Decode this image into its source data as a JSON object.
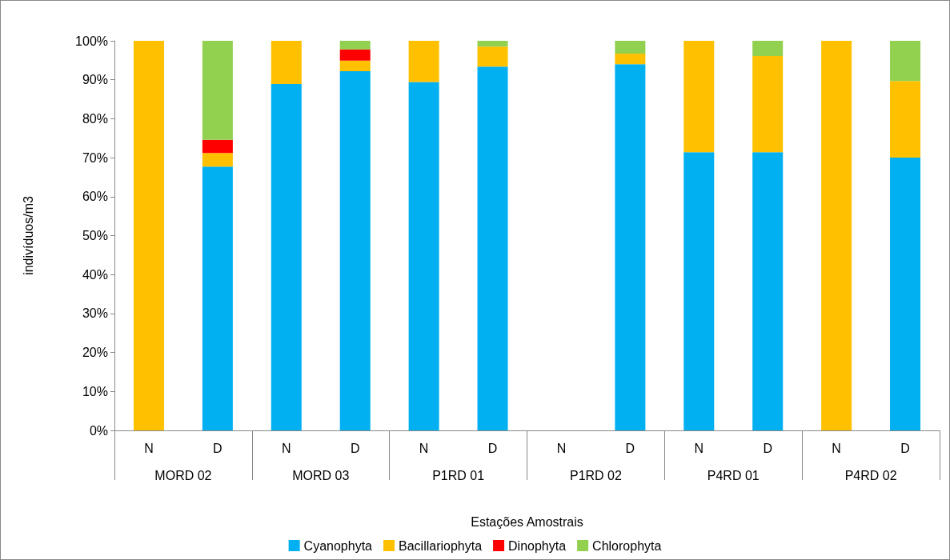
{
  "chart_data": {
    "type": "bar",
    "stacked": true,
    "xlabel": "Estações Amostrais",
    "ylabel": "indivíduos/m3",
    "categories": [
      "N",
      "D",
      "N",
      "D",
      "N",
      "D",
      "N",
      "D",
      "N",
      "D",
      "N",
      "D"
    ],
    "annotations": [
      "MORD 02",
      "MORD 03",
      "P1RD 01",
      "P1RD 02",
      "P4RD 01",
      "P4RD 02"
    ],
    "series": [
      {
        "name": "Cyanophyta",
        "color": "#00b0f0",
        "values": [
          0,
          67.7,
          88.9,
          92.2,
          89.4,
          93.4,
          null,
          94.0,
          71.4,
          71.4,
          0,
          70.0
        ]
      },
      {
        "name": "Bacillariophyta",
        "color": "#ffc000",
        "values": [
          100,
          3.5,
          11.1,
          2.7,
          10.6,
          5.1,
          null,
          2.7,
          28.6,
          24.7,
          100,
          19.7
        ]
      },
      {
        "name": "Dinophyta",
        "color": "#ff0000",
        "values": [
          0,
          3.4,
          0,
          2.9,
          0,
          0,
          null,
          0,
          0,
          0,
          0,
          0
        ]
      },
      {
        "name": "Chlorophyta",
        "color": "#92d050",
        "values": [
          0,
          25.4,
          0,
          2.2,
          0,
          1.5,
          null,
          3.3,
          0,
          3.9,
          0,
          10.3
        ]
      }
    ],
    "ylim": [
      0,
      100
    ],
    "yticks": [
      {
        "value": 0,
        "label": "0%"
      },
      {
        "value": 10,
        "label": "10%"
      },
      {
        "value": 20,
        "label": "20%"
      },
      {
        "value": 30,
        "label": "30%"
      },
      {
        "value": 40,
        "label": "40%"
      },
      {
        "value": 50,
        "label": "50%"
      },
      {
        "value": 60,
        "label": "60%"
      },
      {
        "value": 70,
        "label": "70%"
      },
      {
        "value": 80,
        "label": "80%"
      },
      {
        "value": 90,
        "label": "90%"
      },
      {
        "value": 100,
        "label": "100%"
      }
    ],
    "grid": false,
    "legend": "bottom"
  }
}
